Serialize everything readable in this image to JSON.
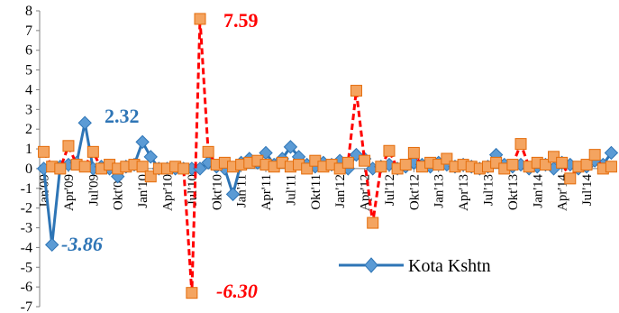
{
  "chart_data": {
    "type": "line",
    "title": "",
    "xlabel": "",
    "ylabel": "",
    "ylim": [
      -7,
      8
    ],
    "y_ticks": [
      8,
      7,
      6,
      5,
      4,
      3,
      2,
      1,
      0,
      -1,
      -2,
      -3,
      -4,
      -5,
      -6,
      -7
    ],
    "x_tick_labels": [
      "Jan'09",
      "Apr'09",
      "Jul'09",
      "Okt'09",
      "Jan'10",
      "Apr'10",
      "Jul'10",
      "Okt'10",
      "Jan'11",
      "Apr'11",
      "Jul'11",
      "Okt'11",
      "Jan'12",
      "Apr'12",
      "Jul'12",
      "Okt'12",
      "Jan'13",
      "Apr'13",
      "Jul'13",
      "Okt'13",
      "Jan'14",
      "Apr'14",
      "Jul'14"
    ],
    "legend": {
      "position": "right-lower"
    },
    "series": [
      {
        "name": "Kota Kshtn",
        "color": "#2E75B6",
        "style": "solid",
        "marker": "diamond",
        "values": [
          0.0,
          -3.86,
          0.1,
          0.2,
          0.3,
          2.32,
          0.0,
          0.1,
          0.0,
          -0.4,
          0.1,
          0.2,
          1.35,
          0.6,
          0.0,
          0.0,
          0.0,
          0.0,
          0.0,
          0.0,
          0.3,
          0.1,
          0.0,
          -1.3,
          0.3,
          0.5,
          0.3,
          0.8,
          0.2,
          0.5,
          1.1,
          0.6,
          0.2,
          0.1,
          0.3,
          0.2,
          0.4,
          0.0,
          0.7,
          0.5,
          0.0,
          0.1,
          0.2,
          0.0,
          0.1,
          0.3,
          0.2,
          0.1,
          0.3,
          0.2,
          0.1,
          0.2,
          0.1,
          0.0,
          0.1,
          0.7,
          0.2,
          0.1,
          0.2,
          0.0,
          0.1,
          0.2,
          0.0,
          0.3,
          0.2,
          0.0,
          0.1,
          0.4,
          0.2,
          0.8
        ]
      },
      {
        "name": "",
        "color": "#FF0000",
        "style": "dashed",
        "marker": "square",
        "marker_fill": "#F4A460",
        "values": [
          0.85,
          0.1,
          0.0,
          1.15,
          0.2,
          0.1,
          0.85,
          0.0,
          0.2,
          0.0,
          0.1,
          0.2,
          0.1,
          -0.4,
          0.0,
          0.0,
          0.1,
          0.0,
          -6.3,
          7.59,
          0.85,
          0.2,
          0.3,
          0.1,
          0.2,
          0.3,
          0.4,
          0.2,
          0.1,
          0.3,
          0.1,
          0.2,
          0.0,
          0.4,
          0.1,
          0.2,
          0.0,
          0.3,
          3.95,
          0.4,
          -2.75,
          0.1,
          0.9,
          0.0,
          0.2,
          0.8,
          0.1,
          0.3,
          0.2,
          0.5,
          0.1,
          0.2,
          0.1,
          0.0,
          0.1,
          0.3,
          0.0,
          0.2,
          1.25,
          0.1,
          0.3,
          0.2,
          0.6,
          0.3,
          -0.5,
          0.1,
          0.2,
          0.7,
          0.0,
          0.1
        ]
      }
    ],
    "annotations": [
      {
        "text": "7.59",
        "color": "#FF0000",
        "italic": false
      },
      {
        "text": "-6.30",
        "color": "#FF0000",
        "italic": true
      },
      {
        "text": "2.32",
        "color": "#2E75B6",
        "italic": false
      },
      {
        "text": "-3.86",
        "color": "#2E75B6",
        "italic": true
      }
    ]
  }
}
